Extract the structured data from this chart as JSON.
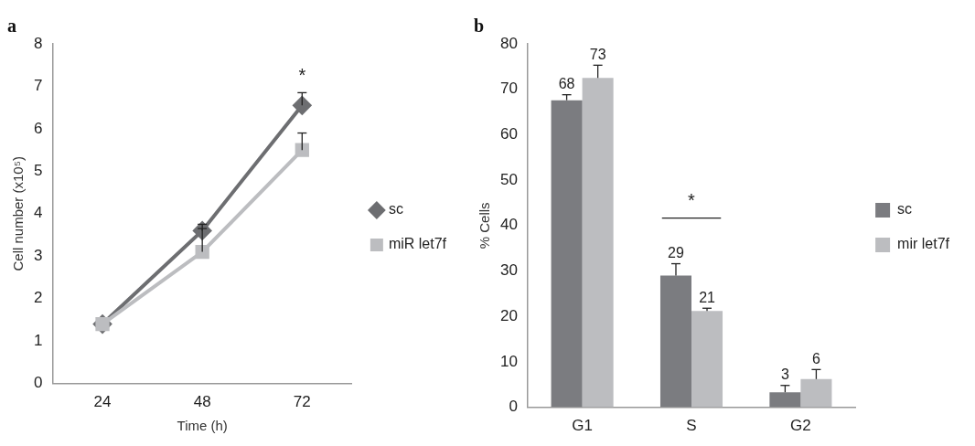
{
  "chart_data": [
    {
      "type": "line",
      "title": "a",
      "xlabel": "Time (h)",
      "ylabel": "Cell number (x10⁵)",
      "categories": [
        "24",
        "48",
        "72"
      ],
      "series": [
        {
          "name": "sc",
          "color": "#6d6e71",
          "marker": "diamond",
          "values": [
            1.4,
            3.6,
            6.55
          ],
          "errors": [
            null,
            [
              3.6,
              3.75
            ],
            [
              6.55,
              6.85
            ]
          ]
        },
        {
          "name": "miR let7f",
          "color": "#bcbdc0",
          "marker": "square",
          "values": [
            1.4,
            3.1,
            5.5
          ],
          "errors": [
            null,
            [
              3.1,
              3.65
            ],
            [
              5.5,
              5.9
            ]
          ]
        }
      ],
      "ylim": [
        0,
        8
      ],
      "yticks": [
        0,
        1,
        2,
        3,
        4,
        5,
        6,
        7,
        8
      ],
      "grid": false,
      "legend": "right",
      "line_style": "solid",
      "annotations": [
        "*"
      ]
    },
    {
      "type": "bar",
      "title": "b",
      "ylabel": "% Cells",
      "categories": [
        "G1",
        "S",
        "G2"
      ],
      "series": [
        {
          "name": "sc",
          "color": "#7b7c80",
          "values": [
            67.6,
            29,
            3.3
          ],
          "errors": [
            [
              67.6,
              68.8
            ],
            [
              29,
              31.6
            ],
            [
              3.3,
              4.8
            ]
          ],
          "value_labels": [
            "68",
            "29",
            "3"
          ]
        },
        {
          "name": "mir let7f",
          "color": "#bcbdc0",
          "values": [
            72.5,
            21.2,
            6.2
          ],
          "errors": [
            [
              72.5,
              75.3
            ],
            [
              21.2,
              21.8
            ],
            [
              6.2,
              8.3
            ]
          ],
          "value_labels": [
            "73",
            "21",
            "6"
          ]
        }
      ],
      "ylim": [
        0,
        80
      ],
      "yticks": [
        0,
        10,
        20,
        30,
        40,
        50,
        60,
        70,
        80
      ],
      "grid": false,
      "legend": "right",
      "annotations": [
        "*"
      ]
    }
  ]
}
